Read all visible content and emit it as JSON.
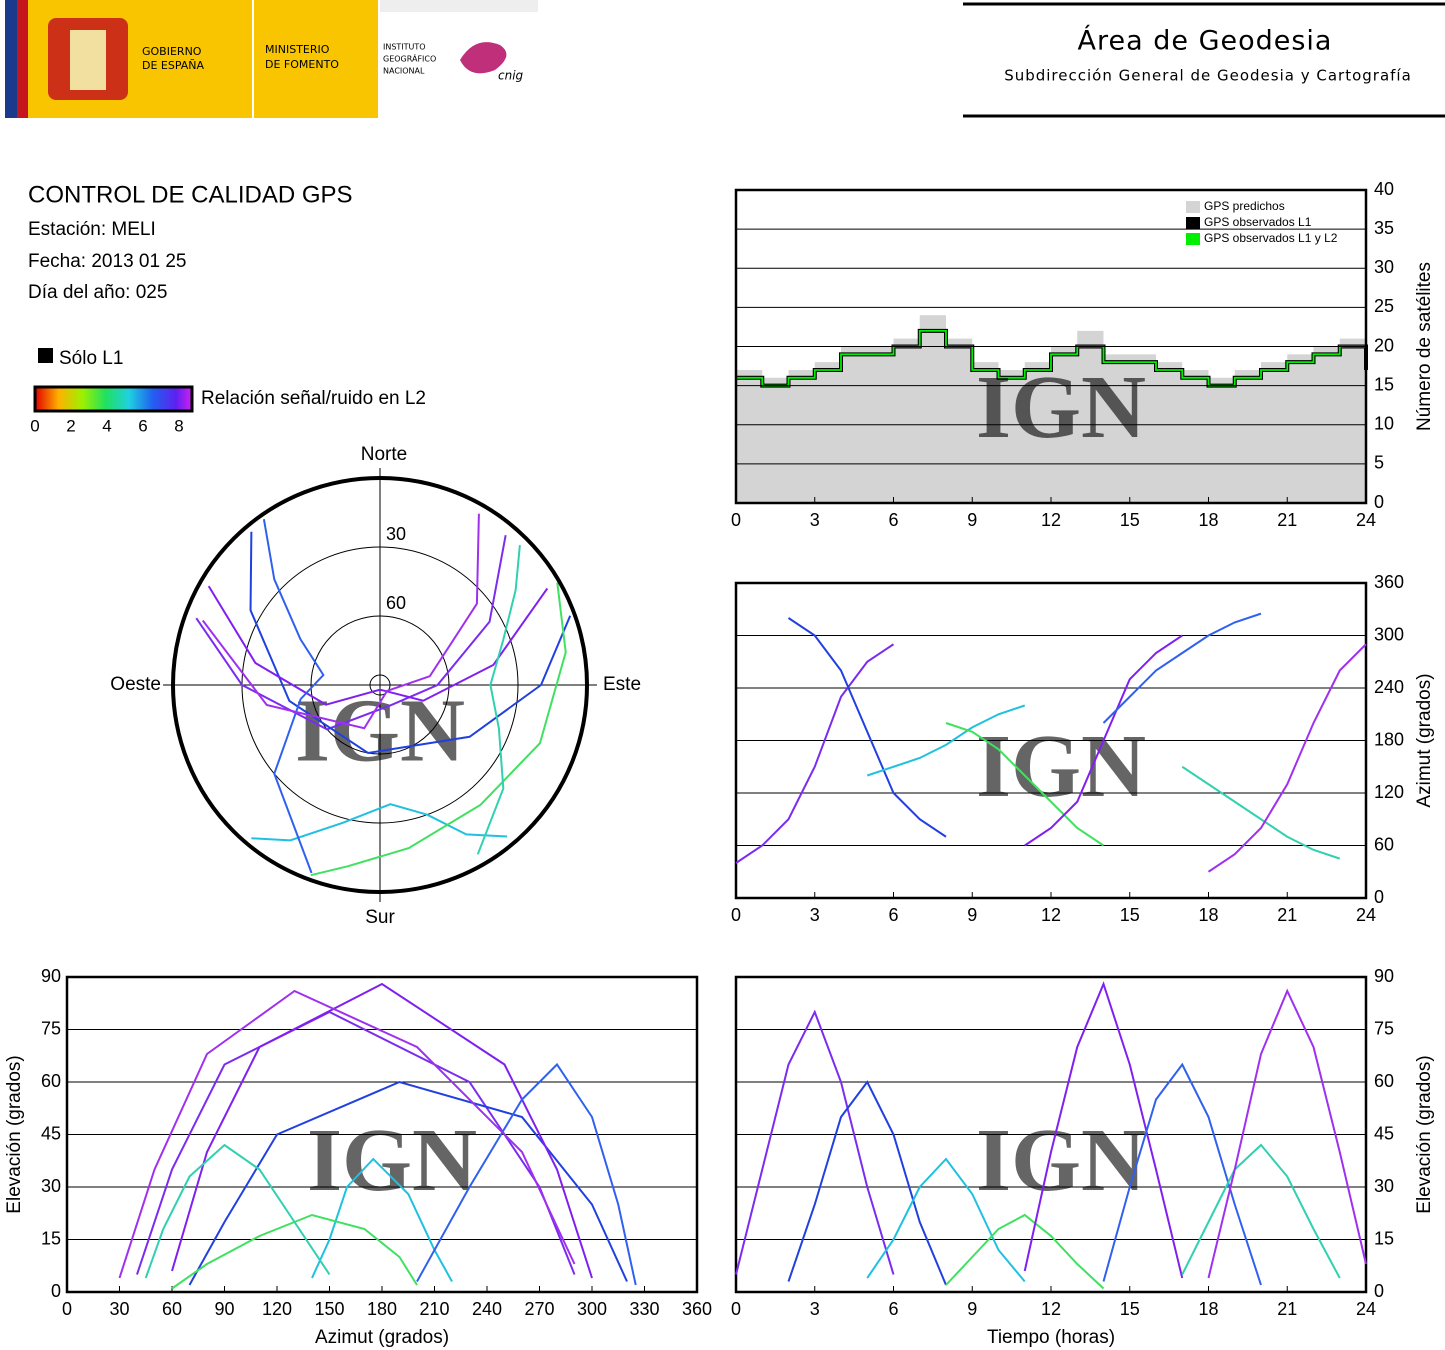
{
  "header": {
    "gov": [
      "GOBIERNO",
      "DE ESPAÑA"
    ],
    "ministry": [
      "MINISTERIO",
      "DE FOMENTO"
    ],
    "institute": [
      "INSTITUTO",
      "GEOGRÁFICO",
      "NACIONAL"
    ],
    "logo": "cnig",
    "area": "Área de Geodesia",
    "subdirection": "Subdirección General de Geodesia y Cartografía"
  },
  "info": {
    "title": "CONTROL DE CALIDAD GPS",
    "station": "Estación: MELI",
    "date": "Fecha: 2013 01 25",
    "doy": "Día del año: 025",
    "l1_only": "Sólo L1",
    "snr_label": "Relación señal/ruido en L2",
    "snr_ticks": [
      0,
      2,
      4,
      6,
      8
    ]
  },
  "watermark": "IGN",
  "satellite_tracks": [
    {
      "color": "#7b2cf0",
      "t": [
        0,
        1,
        2,
        3,
        4,
        5,
        6
      ],
      "az": [
        40,
        60,
        90,
        150,
        230,
        270,
        290
      ],
      "el": [
        5,
        35,
        65,
        80,
        60,
        30,
        5
      ]
    },
    {
      "color": "#2040e0",
      "t": [
        2,
        3,
        4,
        5,
        6,
        7,
        8
      ],
      "az": [
        320,
        300,
        260,
        190,
        120,
        90,
        70
      ],
      "el": [
        3,
        25,
        50,
        60,
        45,
        20,
        2
      ]
    },
    {
      "color": "#20c0e0",
      "t": [
        5,
        6,
        7,
        8,
        9,
        10,
        11
      ],
      "az": [
        140,
        150,
        160,
        175,
        195,
        210,
        220
      ],
      "el": [
        4,
        15,
        30,
        38,
        28,
        12,
        3
      ]
    },
    {
      "color": "#40e060",
      "t": [
        8,
        9,
        10,
        11,
        12,
        13,
        14
      ],
      "az": [
        200,
        190,
        170,
        140,
        110,
        80,
        60
      ],
      "el": [
        2,
        10,
        18,
        22,
        16,
        8,
        1
      ]
    },
    {
      "color": "#8020f0",
      "t": [
        11,
        12,
        13,
        14,
        15,
        16,
        17
      ],
      "az": [
        60,
        80,
        110,
        180,
        250,
        280,
        300
      ],
      "el": [
        6,
        40,
        70,
        88,
        65,
        35,
        4
      ]
    },
    {
      "color": "#3060f0",
      "t": [
        14,
        15,
        16,
        17,
        18,
        19,
        20
      ],
      "az": [
        200,
        230,
        260,
        280,
        300,
        315,
        325
      ],
      "el": [
        3,
        30,
        55,
        65,
        50,
        25,
        2
      ]
    },
    {
      "color": "#30d0b0",
      "t": [
        17,
        18,
        19,
        20,
        21,
        22,
        23
      ],
      "az": [
        150,
        130,
        110,
        90,
        70,
        55,
        45
      ],
      "el": [
        5,
        20,
        35,
        42,
        33,
        18,
        4
      ]
    },
    {
      "color": "#a030f0",
      "t": [
        18,
        19,
        20,
        21,
        22,
        23,
        24
      ],
      "az": [
        30,
        50,
        80,
        130,
        200,
        260,
        290
      ],
      "el": [
        4,
        35,
        68,
        86,
        70,
        40,
        8
      ]
    }
  ],
  "chart_data": [
    {
      "type": "step",
      "ylabel": "Número de satélites",
      "xlim": [
        0,
        24
      ],
      "xticks": [
        0,
        3,
        6,
        9,
        12,
        15,
        18,
        21,
        24
      ],
      "ylim": [
        0,
        40
      ],
      "yticks": [
        0,
        5,
        10,
        15,
        20,
        25,
        30,
        35,
        40
      ],
      "grid": true,
      "legend": "upper right",
      "x": [
        0,
        1,
        2,
        3,
        4,
        5,
        6,
        7,
        8,
        9,
        10,
        11,
        12,
        13,
        14,
        15,
        16,
        17,
        18,
        19,
        20,
        21,
        22,
        23,
        24
      ],
      "series": [
        {
          "name": "GPS predichos",
          "color": "#d4d4d4",
          "values": [
            17,
            16,
            17,
            18,
            20,
            20,
            21,
            24,
            21,
            18,
            17,
            18,
            20,
            22,
            19,
            19,
            18,
            17,
            16,
            17,
            18,
            19,
            20,
            21,
            18
          ]
        },
        {
          "name": "GPS observados L1",
          "color": "#000000",
          "values": [
            16,
            15,
            16,
            17,
            19,
            19,
            20,
            22,
            20,
            17,
            16,
            17,
            19,
            20,
            18,
            18,
            17,
            16,
            15,
            16,
            17,
            18,
            19,
            20,
            17
          ]
        },
        {
          "name": "GPS observados L1 y L2",
          "color": "#00ee00",
          "values": [
            16,
            15,
            16,
            17,
            19,
            19,
            20,
            22,
            20,
            17,
            16,
            17,
            19,
            20,
            18,
            18,
            17,
            16,
            15,
            16,
            17,
            18,
            19,
            20,
            17
          ]
        }
      ]
    },
    {
      "type": "track",
      "x_field": "t",
      "y_field": "az",
      "ylabel": "Azimut (grados)",
      "xlim": [
        0,
        24
      ],
      "xticks": [
        0,
        3,
        6,
        9,
        12,
        15,
        18,
        21,
        24
      ],
      "ylim": [
        0,
        360
      ],
      "yticks": [
        0,
        60,
        120,
        180,
        240,
        300,
        360
      ],
      "grid": true
    },
    {
      "type": "polar",
      "north": "Norte",
      "south": "Sur",
      "east": "Este",
      "west": "Oeste",
      "rlim": [
        90,
        0
      ],
      "rticks": [
        30,
        60
      ]
    },
    {
      "type": "track",
      "x_field": "az",
      "y_field": "el",
      "xlabel": "Azimut (grados)",
      "ylabel": "Elevación (grados)",
      "xlim": [
        0,
        360
      ],
      "xticks": [
        0,
        30,
        60,
        90,
        120,
        150,
        180,
        210,
        240,
        270,
        300,
        330,
        360
      ],
      "ylim": [
        0,
        90
      ],
      "yticks": [
        0,
        15,
        30,
        45,
        60,
        75,
        90
      ],
      "grid": true
    },
    {
      "type": "track",
      "x_field": "t",
      "y_field": "el",
      "xlabel": "Tiempo (horas)",
      "ylabel": "Elevación (grados)",
      "xlim": [
        0,
        24
      ],
      "xticks": [
        0,
        3,
        6,
        9,
        12,
        15,
        18,
        21,
        24
      ],
      "ylim": [
        0,
        90
      ],
      "yticks": [
        0,
        15,
        30,
        45,
        60,
        75,
        90
      ],
      "grid": true
    }
  ]
}
